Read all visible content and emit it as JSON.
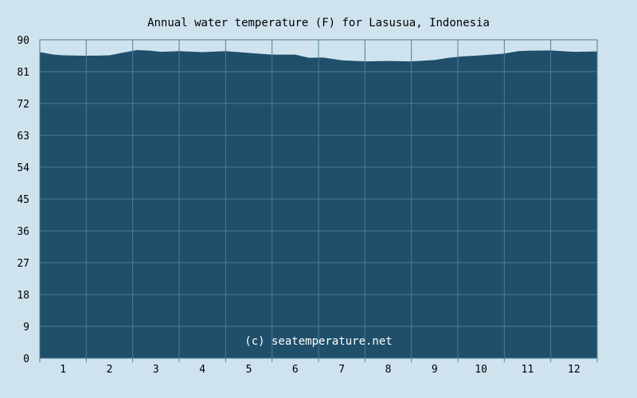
{
  "chart_data": {
    "type": "area",
    "title": "Annual water temperature (F) for Lasusua, Indonesia",
    "xlabel": "",
    "ylabel": "",
    "ylim": [
      0,
      90
    ],
    "yticks": [
      "0",
      "9",
      "18",
      "27",
      "36",
      "45",
      "54",
      "63",
      "72",
      "81",
      "90"
    ],
    "xtick_labels": [
      "1",
      "2",
      "3",
      "4",
      "5",
      "6",
      "7",
      "8",
      "9",
      "10",
      "11",
      "12"
    ],
    "grid": true,
    "annotation": "(c) seatemperature.net",
    "colors": {
      "background": "#cfe3ef",
      "fill": "#1f4f6a",
      "grid": "#4d7c96"
    },
    "series": [
      {
        "x": [
          0.5,
          0.8,
          1,
          1.5,
          2,
          2.3,
          2.6,
          2.9,
          3.1,
          3.5,
          4,
          4.5,
          5,
          5.5,
          6,
          6.3,
          6.6,
          7,
          7.5,
          8,
          8.5,
          9,
          9.3,
          9.6,
          10,
          10.5,
          10.8,
          11,
          11.5,
          12,
          12.5
        ],
        "values": [
          86.5,
          85.8,
          85.6,
          85.5,
          85.6,
          86.4,
          87.1,
          86.9,
          86.6,
          86.8,
          86.5,
          86.8,
          86.3,
          85.8,
          85.8,
          84.9,
          85.0,
          84.2,
          83.9,
          84.0,
          83.9,
          84.3,
          84.9,
          85.3,
          85.6,
          86.1,
          86.8,
          86.9,
          87.0,
          86.6,
          86.7
        ]
      }
    ]
  }
}
